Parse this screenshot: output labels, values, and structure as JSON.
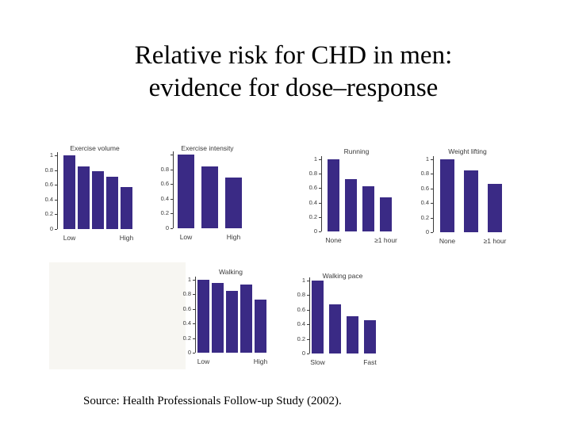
{
  "slide": {
    "title_line1": "Relative risk for CHD in men:",
    "title_line2": "evidence for dose–response",
    "source": "Source: Health Professionals Follow-up Study (2002)."
  },
  "colors": {
    "bar": "#3a2a85",
    "axis": "#3a3a3a",
    "background": "#ffffff",
    "placeholder_box": "#f7f6f2"
  },
  "chart_data": [
    {
      "type": "bar",
      "title": "Exercise volume",
      "values": [
        1.0,
        0.85,
        0.78,
        0.71,
        0.57
      ],
      "x_first_label": "Low",
      "x_last_label": "High",
      "ylim": [
        0,
        1
      ],
      "yticks": [
        1,
        0.8,
        0.6,
        0.4,
        0.2,
        0
      ],
      "ytick_labels": [
        "1",
        "0.8",
        "0.6",
        "0.4",
        "0.2",
        "0"
      ],
      "grid": "off",
      "legend": "none"
    },
    {
      "type": "bar",
      "title": "Exercise intensity",
      "values": [
        1.0,
        0.84,
        0.69
      ],
      "x_first_label": "Low",
      "x_last_label": "High",
      "ylim": [
        0,
        1
      ],
      "yticks": [
        1,
        0.8,
        0.6,
        0.4,
        0.2,
        0
      ],
      "ytick_labels": [
        "",
        "0.8",
        "0.6",
        "0.4",
        "0.2",
        "0"
      ],
      "grid": "off",
      "legend": "none"
    },
    {
      "type": "bar",
      "title": "Running",
      "values": [
        1.0,
        0.72,
        0.63,
        0.47
      ],
      "x_first_label": "None",
      "x_last_label": "≥1 hour",
      "ylim": [
        0,
        1
      ],
      "yticks": [
        1,
        0.8,
        0.6,
        0.4,
        0.2,
        0
      ],
      "ytick_labels": [
        "1",
        "0.8",
        "0.6",
        "0.4",
        "0.2",
        "0"
      ],
      "grid": "off",
      "legend": "none"
    },
    {
      "type": "bar",
      "title": "Weight lifting",
      "values": [
        1.0,
        0.85,
        0.66
      ],
      "x_first_label": "None",
      "x_last_label": "≥1 hour",
      "ylim": [
        0,
        1
      ],
      "yticks": [
        1,
        0.8,
        0.6,
        0.4,
        0.2,
        0
      ],
      "ytick_labels": [
        "1",
        "0.8",
        "0.6",
        "0.4",
        "0.2",
        "0"
      ],
      "grid": "off",
      "legend": "none"
    },
    {
      "type": "bar",
      "title": "Walking",
      "values": [
        1.0,
        0.96,
        0.85,
        0.94,
        0.73
      ],
      "x_first_label": "Low",
      "x_last_label": "High",
      "ylim": [
        0,
        1
      ],
      "yticks": [
        1,
        0.8,
        0.6,
        0.4,
        0.2,
        0
      ],
      "ytick_labels": [
        "1",
        "0.8",
        "0.6",
        "0.4",
        "0.2",
        "0"
      ],
      "grid": "off",
      "legend": "none"
    },
    {
      "type": "bar",
      "title": "Walking pace",
      "values": [
        1.0,
        0.67,
        0.51,
        0.46
      ],
      "x_first_label": "Slow",
      "x_last_label": "Fast",
      "ylim": [
        0,
        1
      ],
      "yticks": [
        1,
        0.8,
        0.6,
        0.4,
        0.2,
        0
      ],
      "ytick_labels": [
        "1",
        "0.8",
        "0.6",
        "0.4",
        "0.2",
        "0"
      ],
      "grid": "off",
      "legend": "none"
    }
  ]
}
